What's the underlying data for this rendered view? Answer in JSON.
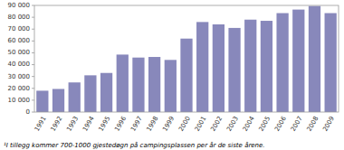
{
  "chart_data": {
    "type": "bar",
    "categories": [
      "1991",
      "1992",
      "1993",
      "1994",
      "1995",
      "1996",
      "1997",
      "1998",
      "1999",
      "2000",
      "2001",
      "2002",
      "2003",
      "2004",
      "2005",
      "2006",
      "2007",
      "2008",
      "2009"
    ],
    "values": [
      18000,
      19500,
      25000,
      31000,
      33000,
      48500,
      46000,
      46500,
      44000,
      62000,
      76000,
      74000,
      71000,
      78000,
      77000,
      83500,
      86500,
      89500,
      83500
    ],
    "color": "#8888bb",
    "ylim": [
      0,
      90000
    ],
    "yticks": [
      0,
      {
        "value": 10000,
        "label": "10 000"
      },
      {
        "value": 20000,
        "label": "20 000"
      },
      {
        "value": 30000,
        "label": "30 000"
      },
      {
        "value": 40000,
        "label": "40 000"
      },
      {
        "value": 50000,
        "label": "50 000"
      },
      {
        "value": 60000,
        "label": "60 000"
      },
      {
        "value": 70000,
        "label": "70 000"
      },
      {
        "value": 80000,
        "label": "80 000"
      },
      {
        "value": 90000,
        "label": "90 000"
      }
    ],
    "grid": false,
    "annotations": [
      "¹I tillegg kommer 700-1000 gjestedøgn på campingsplassen per år de siste årene."
    ]
  }
}
